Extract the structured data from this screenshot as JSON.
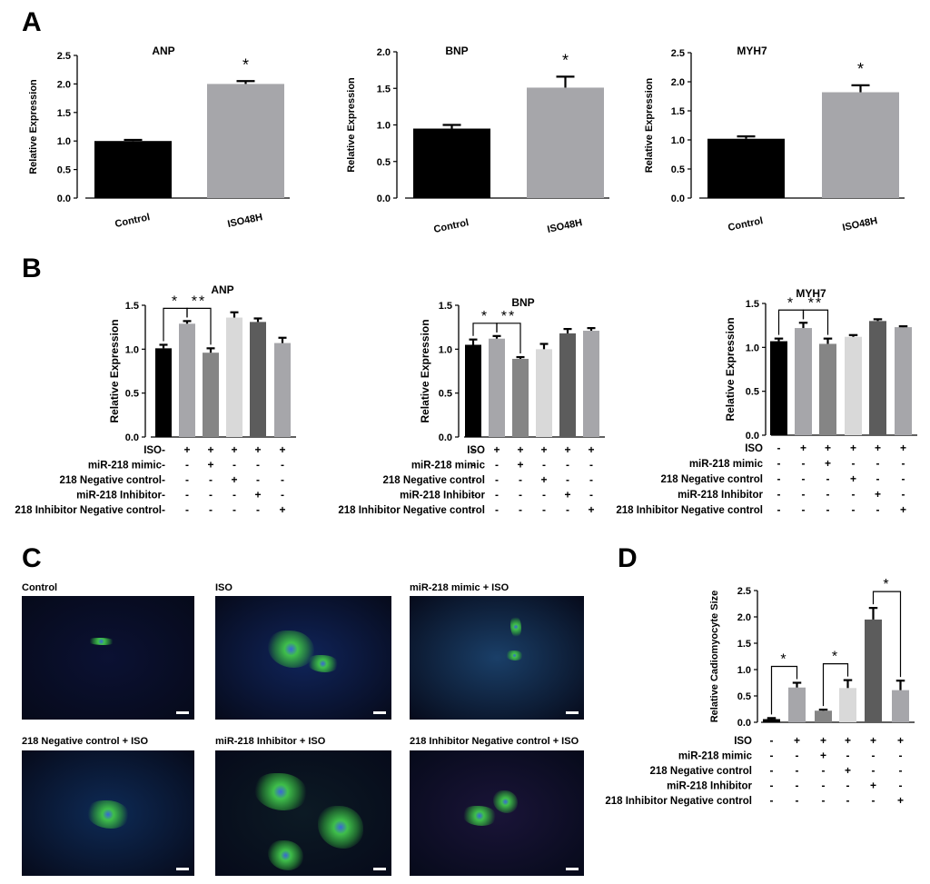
{
  "panel_letters": {
    "a": "A",
    "b": "B",
    "c": "C",
    "d": "D"
  },
  "chart_data": [
    {
      "id": "A1",
      "type": "bar",
      "title": "ANP",
      "ylabel": "Relative Expression",
      "categories": [
        "Control",
        "ISO48H"
      ],
      "values": [
        1.0,
        2.0
      ],
      "errors": [
        0.02,
        0.05
      ],
      "ylim": [
        0,
        2.5
      ],
      "yticks": [
        "0.0",
        "0.5",
        "1.0",
        "1.5",
        "2.0",
        "2.5"
      ],
      "colors": [
        "#000000",
        "#a6a6aa"
      ],
      "significance": [
        {
          "bar": 1,
          "label": "*"
        }
      ]
    },
    {
      "id": "A2",
      "type": "bar",
      "title": "BNP",
      "ylabel": "Relative Expression",
      "categories": [
        "Control",
        "ISO48H"
      ],
      "values": [
        0.95,
        1.51
      ],
      "errors": [
        0.05,
        0.15
      ],
      "ylim": [
        0,
        2.0
      ],
      "yticks": [
        "0.0",
        "0.5",
        "1.0",
        "1.5",
        "2.0"
      ],
      "colors": [
        "#000000",
        "#a6a6aa"
      ],
      "significance": [
        {
          "bar": 1,
          "label": "*"
        }
      ]
    },
    {
      "id": "A3",
      "type": "bar",
      "title": "MYH7",
      "ylabel": "Relative Expression",
      "categories": [
        "Control",
        "ISO48H"
      ],
      "values": [
        1.02,
        1.82
      ],
      "errors": [
        0.04,
        0.12
      ],
      "ylim": [
        0,
        2.5
      ],
      "yticks": [
        "0.0",
        "0.5",
        "1.0",
        "1.5",
        "2.0",
        "2.5"
      ],
      "colors": [
        "#000000",
        "#a6a6aa"
      ],
      "significance": [
        {
          "bar": 1,
          "label": "*"
        }
      ]
    },
    {
      "id": "B1",
      "type": "bar",
      "title": "ANP",
      "ylabel": "Relative Expression",
      "values": [
        1.01,
        1.29,
        0.96,
        1.36,
        1.31,
        1.07
      ],
      "errors": [
        0.04,
        0.03,
        0.05,
        0.06,
        0.04,
        0.06
      ],
      "ylim": [
        0,
        1.5
      ],
      "yticks": [
        "0.0",
        "0.5",
        "1.0",
        "1.5"
      ],
      "colors": [
        "#000000",
        "#a6a6aa",
        "#858585",
        "#d9d9d9",
        "#5c5c5c",
        "#a6a6aa"
      ],
      "row_labels": [
        "ISO",
        "miR-218 mimic",
        "218 Negative control",
        "miR-218 Inhibitor",
        "218 Inhibitor Negative control"
      ],
      "matrix": [
        [
          "-",
          "+",
          "+",
          "+",
          "+",
          "+"
        ],
        [
          "-",
          "-",
          "+",
          "-",
          "-",
          "-"
        ],
        [
          "-",
          "-",
          "-",
          "+",
          "-",
          "-"
        ],
        [
          "-",
          "-",
          "-",
          "-",
          "+",
          "-"
        ],
        [
          "-",
          "-",
          "-",
          "-",
          "-",
          "+"
        ]
      ],
      "brackets": [
        {
          "from": 0,
          "to": 1,
          "label": "*"
        },
        {
          "from": 1,
          "to": 2,
          "label": "**"
        }
      ]
    },
    {
      "id": "B2",
      "type": "bar",
      "title": "BNP",
      "ylabel": "Relative Expression",
      "values": [
        1.05,
        1.12,
        0.89,
        1.0,
        1.18,
        1.21
      ],
      "errors": [
        0.06,
        0.03,
        0.02,
        0.06,
        0.05,
        0.03
      ],
      "ylim": [
        0,
        1.5
      ],
      "yticks": [
        "0.0",
        "0.5",
        "1.0",
        "1.5"
      ],
      "colors": [
        "#000000",
        "#a6a6aa",
        "#858585",
        "#d9d9d9",
        "#5c5c5c",
        "#a6a6aa"
      ],
      "row_labels": [
        "ISO",
        "miR-218 mimic",
        "218 Negative control",
        "miR-218 Inhibitor",
        "218 Inhibitor Negative control"
      ],
      "matrix": [
        [
          "-",
          "+",
          "+",
          "+",
          "+",
          "+"
        ],
        [
          "-",
          "-",
          "+",
          "-",
          "-",
          "-"
        ],
        [
          "-",
          "-",
          "-",
          "+",
          "-",
          "-"
        ],
        [
          "-",
          "-",
          "-",
          "-",
          "+",
          "-"
        ],
        [
          "-",
          "-",
          "-",
          "-",
          "-",
          "+"
        ]
      ],
      "brackets": [
        {
          "from": 0,
          "to": 1,
          "label": "*"
        },
        {
          "from": 1,
          "to": 2,
          "label": "**"
        }
      ]
    },
    {
      "id": "B3",
      "type": "bar",
      "title": "MYH7",
      "ylabel": "Relative Expression",
      "values": [
        1.07,
        1.22,
        1.04,
        1.12,
        1.3,
        1.23
      ],
      "errors": [
        0.03,
        0.06,
        0.06,
        0.02,
        0.02,
        0.01
      ],
      "ylim": [
        0,
        1.5
      ],
      "yticks": [
        "0.0",
        "0.5",
        "1.0",
        "1.5"
      ],
      "colors": [
        "#000000",
        "#a6a6aa",
        "#858585",
        "#d9d9d9",
        "#5c5c5c",
        "#a6a6aa"
      ],
      "row_labels": [
        "ISO",
        "miR-218 mimic",
        "218 Negative control",
        "miR-218 Inhibitor",
        "218 Inhibitor Negative control"
      ],
      "matrix": [
        [
          "-",
          "+",
          "+",
          "+",
          "+",
          "+"
        ],
        [
          "-",
          "-",
          "+",
          "-",
          "-",
          "-"
        ],
        [
          "-",
          "-",
          "-",
          "+",
          "-",
          "-"
        ],
        [
          "-",
          "-",
          "-",
          "-",
          "+",
          "-"
        ],
        [
          "-",
          "-",
          "-",
          "-",
          "-",
          "+"
        ]
      ],
      "brackets": [
        {
          "from": 0,
          "to": 1,
          "label": "*"
        },
        {
          "from": 1,
          "to": 2,
          "label": "**"
        }
      ]
    },
    {
      "id": "D",
      "type": "bar",
      "title": "",
      "ylabel": "Relative Cadiomyocyte Size",
      "values": [
        0.06,
        0.66,
        0.22,
        0.65,
        1.95,
        0.61
      ],
      "errors": [
        0.02,
        0.09,
        0.02,
        0.15,
        0.22,
        0.18
      ],
      "ylim": [
        0,
        2.5
      ],
      "yticks": [
        "0.0",
        "0.5",
        "1.0",
        "1.5",
        "2.0",
        "2.5"
      ],
      "colors": [
        "#000000",
        "#a6a6aa",
        "#858585",
        "#d9d9d9",
        "#5c5c5c",
        "#a6a6aa"
      ],
      "row_labels": [
        "ISO",
        "miR-218 mimic",
        "218 Negative control",
        "miR-218 Inhibitor",
        "218 Inhibitor Negative control"
      ],
      "matrix": [
        [
          "-",
          "+",
          "+",
          "+",
          "+",
          "+"
        ],
        [
          "-",
          "-",
          "+",
          "-",
          "-",
          "-"
        ],
        [
          "-",
          "-",
          "-",
          "+",
          "-",
          "-"
        ],
        [
          "-",
          "-",
          "-",
          "-",
          "+",
          "-"
        ],
        [
          "-",
          "-",
          "-",
          "-",
          "-",
          "+"
        ]
      ],
      "brackets": [
        {
          "from": 0,
          "to": 1,
          "label": "*"
        },
        {
          "from": 2,
          "to": 3,
          "label": "*"
        },
        {
          "from": 4,
          "to": 5,
          "label": "*"
        }
      ]
    }
  ],
  "micrographs": [
    {
      "label": "Control",
      "bg": "#0b1133"
    },
    {
      "label": "ISO",
      "bg": "#10245a"
    },
    {
      "label": "miR-218 mimic + ISO",
      "bg": "#1a3f68"
    },
    {
      "label": "218 Negative control + ISO",
      "bg": "#0e2a55"
    },
    {
      "label": "miR-218 Inhibitor + ISO",
      "bg": "#0c1a24"
    },
    {
      "label": "218 Inhibitor Negative control + ISO",
      "bg": "#1a1438"
    }
  ]
}
